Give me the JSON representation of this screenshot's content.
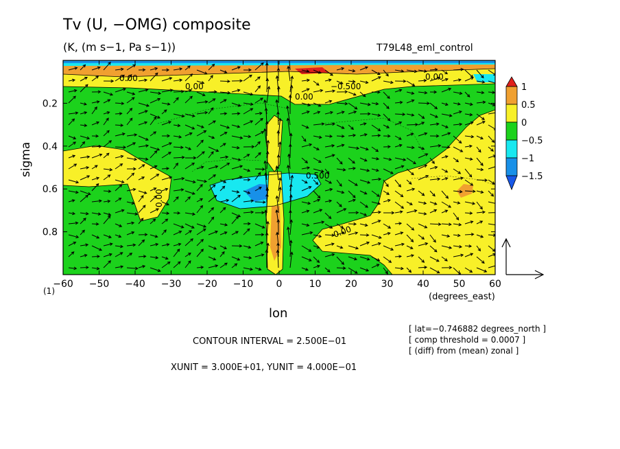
{
  "chart_data": {
    "type": "contour",
    "title": "Tv (U, −OMG) composite",
    "units": "(K, (m s−1, Pa s−1))",
    "experiment": "T79L48_eml_control",
    "xlabel": "lon",
    "x_unit_label": "(degrees_east)",
    "ylabel": "sigma",
    "level_label": "(1)",
    "xlim": [
      -60,
      60
    ],
    "ylim": [
      1.0,
      0.0
    ],
    "x_ticks": [
      -60,
      -50,
      -40,
      -30,
      -20,
      -10,
      0,
      10,
      20,
      30,
      40,
      50,
      60
    ],
    "x_tick_labels": [
      "−60",
      "−50",
      "−40",
      "−30",
      "−20",
      "−10",
      "0",
      "10",
      "20",
      "30",
      "40",
      "50",
      "60"
    ],
    "y_ticks": [
      0.2,
      0.4,
      0.6,
      0.8
    ],
    "y_tick_labels": [
      "0.2",
      "0.4",
      "0.6",
      "0.8"
    ],
    "colorbar": {
      "levels": [
        -1.5,
        -1,
        -0.5,
        0,
        0.5,
        1
      ],
      "labels": [
        "1",
        "0.5",
        "0",
        "−0.5",
        "−1",
        "−1.5"
      ],
      "colors": [
        "#e0201b",
        "#f0a030",
        "#f8f028",
        "#1cd21c",
        "#18e8f0",
        "#1890e8",
        "#1858e8"
      ]
    },
    "contour_labels": [
      "0.500",
      "−0.500",
      "0.00",
      "0.00",
      "0.00",
      "0.00",
      "0.00",
      "0.00"
    ],
    "contour_interval": "CONTOUR INTERVAL = 2.500E−01",
    "vector_scale": "XUNIT = 3.000E+01, YUNIT = 4.000E−01",
    "notes": [
      "[ lat=−0.746882 degrees_north ]",
      "[ comp threshold = 0.0007 ]",
      "[ (diff) from (mean) zonal ]"
    ]
  }
}
